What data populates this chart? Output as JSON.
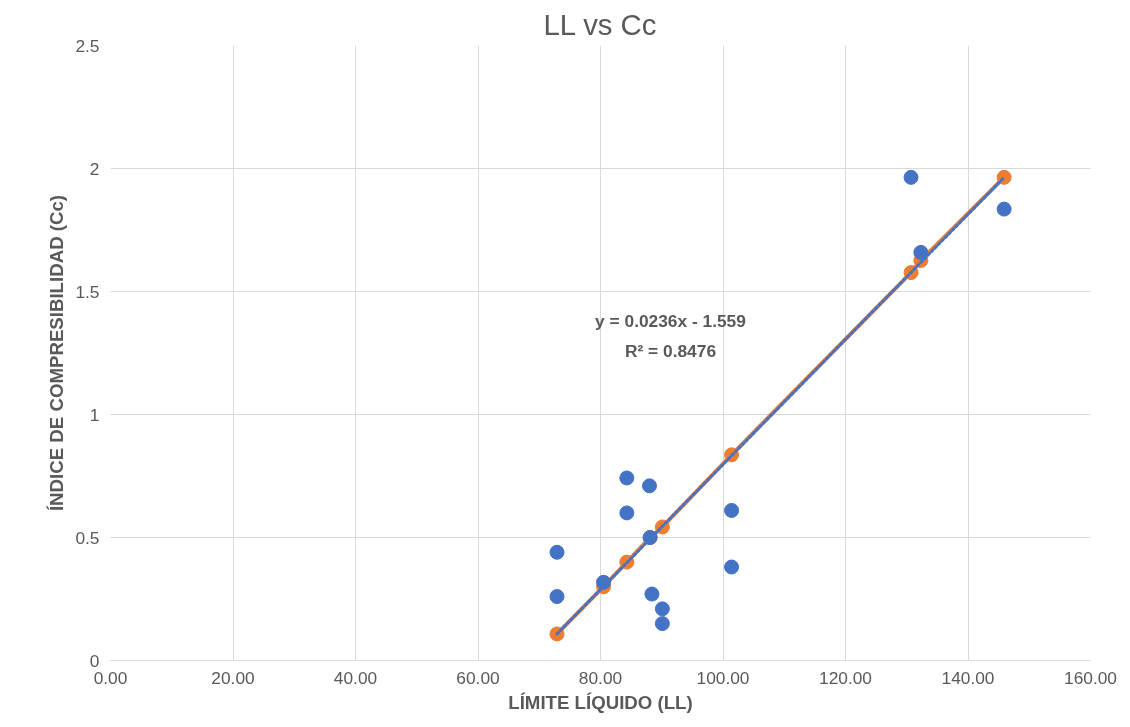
{
  "chart_data": {
    "type": "scatter",
    "title": "LL vs Cc",
    "xlabel": "LÍMITE LÍQUIDO (LL)",
    "ylabel": "ÍNDICE DE COMPRESIBILIDAD (Cc)",
    "annotations": [
      "y = 0.0236x - 1.559\nR² = 0.8476"
    ],
    "xlim": [
      0,
      160
    ],
    "ylim": [
      0,
      2.5
    ],
    "xticks": [
      {
        "value": 0,
        "label": "0.00"
      },
      {
        "value": 20,
        "label": "20.00"
      },
      {
        "value": 40,
        "label": "40.00"
      },
      {
        "value": 60,
        "label": "60.00"
      },
      {
        "value": 80,
        "label": "80.00"
      },
      {
        "value": 100,
        "label": "100.00"
      },
      {
        "value": 120,
        "label": "120.00"
      },
      {
        "value": 140,
        "label": "140.00"
      },
      {
        "value": 160,
        "label": "160.00"
      }
    ],
    "yticks": [
      0,
      0.5,
      1,
      1.5,
      2,
      2.5
    ],
    "grid": true,
    "marker": "circle",
    "series": [
      {
        "type": "line",
        "color": "#ed7d31",
        "x": [
          72.9,
          80.5,
          84.3,
          88.1,
          90.1,
          101.4,
          130.7,
          132.3,
          145.9
        ],
        "values": [
          0.108,
          0.3,
          0.4,
          0.5,
          0.543,
          0.836,
          1.577,
          1.626,
          1.964
        ]
      },
      {
        "type": "line",
        "color": "#4472c4",
        "line_style": "dotted",
        "marker": "none",
        "x": [
          72.9,
          145.9
        ],
        "values": [
          0.108,
          1.964
        ]
      },
      {
        "color": "#4472c4",
        "x": [
          72.9,
          72.9,
          84.3,
          84.3,
          88.0,
          88.1,
          80.5,
          88.4,
          90.1,
          90.1,
          101.4,
          101.4,
          130.7,
          145.9,
          132.3
        ],
        "values": [
          0.44,
          0.26,
          0.742,
          0.6,
          0.71,
          0.5,
          0.318,
          0.27,
          0.21,
          0.15,
          0.61,
          0.38,
          1.964,
          1.835,
          1.659
        ]
      }
    ]
  }
}
